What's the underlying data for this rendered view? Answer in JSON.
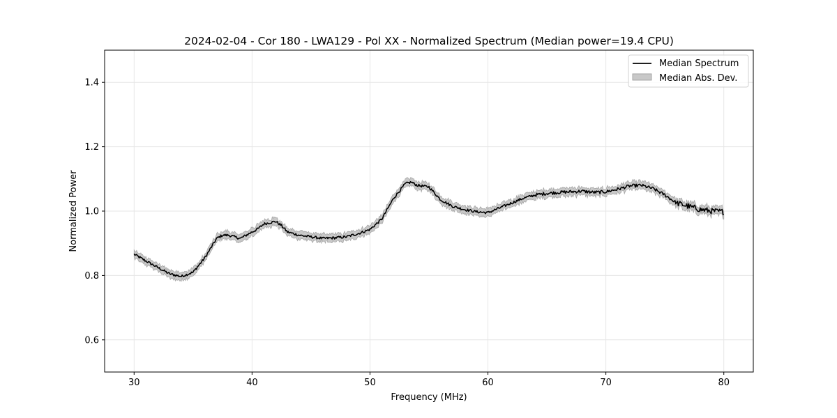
{
  "chart_data": {
    "type": "line",
    "title": "2024-02-04 - Cor 180 - LWA129 - Pol XX - Normalized Spectrum (Median power=19.4 CPU)",
    "xlabel": "Frequency (MHz)",
    "ylabel": "Normalized Power",
    "xlim": [
      27.5,
      82.5
    ],
    "ylim": [
      0.5,
      1.5
    ],
    "xticks": [
      30,
      40,
      50,
      60,
      70,
      80
    ],
    "yticks": [
      0.6,
      0.8,
      1.0,
      1.2,
      1.4
    ],
    "xtick_labels": [
      "30",
      "40",
      "50",
      "60",
      "70",
      "80"
    ],
    "ytick_labels": [
      "0.6",
      "0.8",
      "1.0",
      "1.2",
      "1.4"
    ],
    "grid": true,
    "legend_position": "top-right",
    "legend": [
      "Median Spectrum",
      "Median Abs. Dev."
    ],
    "colors": {
      "line": "#000000",
      "band": "#bfbfbf",
      "band_edge": "#a6a6a6",
      "grid": "#e6e6e6"
    },
    "series": [
      {
        "name": "Median Spectrum",
        "x": [
          30,
          31,
          32,
          33,
          34,
          35,
          36,
          37,
          37.5,
          38,
          39,
          40,
          40.5,
          41,
          42,
          42.5,
          43,
          44,
          45,
          46,
          47,
          48,
          48.5,
          49,
          50,
          51,
          52,
          53,
          53.5,
          54,
          55,
          56,
          57,
          58,
          59,
          60,
          61,
          62,
          63,
          64,
          65,
          66,
          67,
          68,
          69,
          70,
          71,
          72,
          73,
          74,
          75,
          76,
          77,
          78,
          79,
          80
        ],
        "y": [
          0.866,
          0.845,
          0.825,
          0.805,
          0.797,
          0.81,
          0.855,
          0.915,
          0.925,
          0.925,
          0.915,
          0.935,
          0.945,
          0.96,
          0.968,
          0.955,
          0.935,
          0.925,
          0.92,
          0.915,
          0.917,
          0.92,
          0.925,
          0.93,
          0.943,
          0.975,
          1.04,
          1.085,
          1.09,
          1.08,
          1.075,
          1.035,
          1.015,
          1.005,
          0.998,
          0.995,
          1.01,
          1.025,
          1.04,
          1.05,
          1.055,
          1.058,
          1.06,
          1.062,
          1.058,
          1.06,
          1.068,
          1.078,
          1.08,
          1.07,
          1.05,
          1.025,
          1.015,
          1.005,
          1.0,
          0.998
        ]
      },
      {
        "name": "Median Abs. Dev.",
        "band_halfwidth": 0.012
      }
    ]
  }
}
